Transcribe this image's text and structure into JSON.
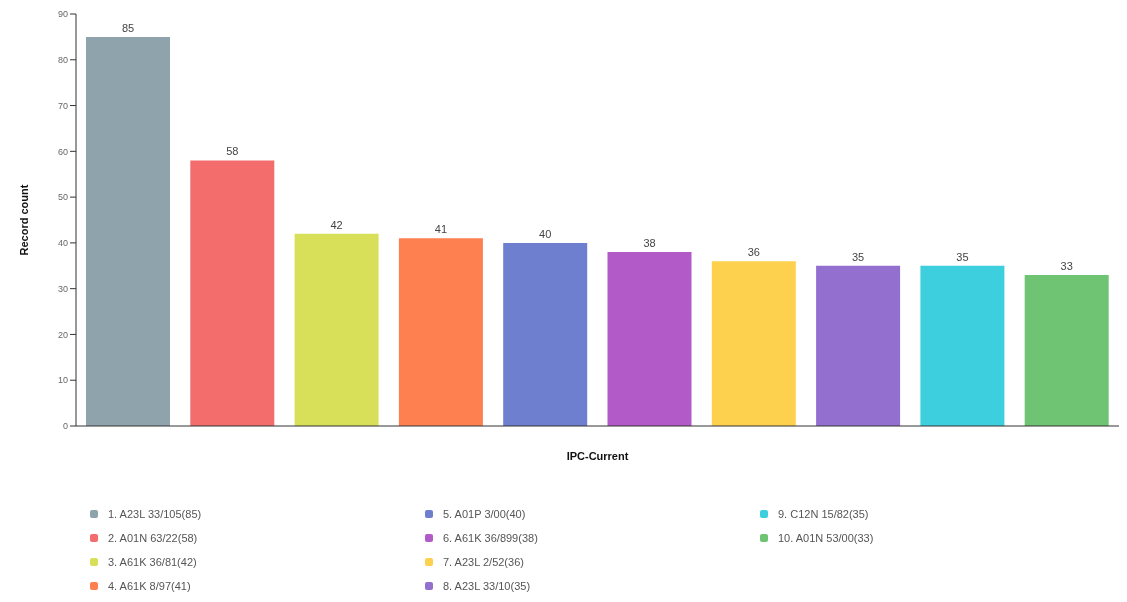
{
  "chart_data": {
    "type": "bar",
    "xlabel": "IPC-Current",
    "ylabel": "Record count",
    "categories": [
      null,
      null,
      null,
      null,
      null,
      null,
      null,
      null,
      null,
      null
    ],
    "stacked": true,
    "series": [
      {
        "name": "1. A23L 33/105(85)",
        "color": "#8fa3ad",
        "values": [
          85,
          null,
          null,
          null,
          null,
          null,
          null,
          null,
          null,
          null
        ]
      },
      {
        "name": "2. A01N 63/22(58)",
        "color": "#f46d6d",
        "values": [
          null,
          58,
          null,
          null,
          null,
          null,
          null,
          null,
          null,
          null
        ]
      },
      {
        "name": "3. A61K 36/81(42)",
        "color": "#d8e05a",
        "values": [
          null,
          null,
          42,
          null,
          null,
          null,
          null,
          null,
          null,
          null
        ]
      },
      {
        "name": "4. A61K 8/97(41)",
        "color": "#fe7f50",
        "values": [
          null,
          null,
          null,
          41,
          null,
          null,
          null,
          null,
          null,
          null
        ]
      },
      {
        "name": "5. A01P 3/00(40)",
        "color": "#6f7fcf",
        "values": [
          null,
          null,
          null,
          null,
          40,
          null,
          null,
          null,
          null,
          null
        ]
      },
      {
        "name": "6. A61K 36/899(38)",
        "color": "#b25bc8",
        "values": [
          null,
          null,
          null,
          null,
          null,
          38,
          null,
          null,
          null,
          null
        ]
      },
      {
        "name": "7. A23L 2/52(36)",
        "color": "#fdd04d",
        "values": [
          null,
          null,
          null,
          null,
          null,
          null,
          36,
          null,
          null,
          null
        ]
      },
      {
        "name": "8. A23L 33/10(35)",
        "color": "#9370d0",
        "values": [
          null,
          null,
          null,
          null,
          null,
          null,
          null,
          35,
          null,
          null
        ]
      },
      {
        "name": "9. C12N 15/82(35)",
        "color": "#3ecfde",
        "values": [
          null,
          null,
          null,
          null,
          null,
          null,
          null,
          null,
          35,
          null
        ]
      },
      {
        "name": "10. A01N 53/00(33)",
        "color": "#6ec473",
        "values": [
          null,
          null,
          null,
          null,
          null,
          null,
          null,
          null,
          null,
          33
        ]
      }
    ],
    "ylim": [
      0,
      90
    ],
    "yticks": [
      0,
      10,
      20,
      30,
      40,
      50,
      60,
      70,
      80,
      90
    ],
    "data_labels": true,
    "tick_labels": "y",
    "legend": "bottom"
  }
}
